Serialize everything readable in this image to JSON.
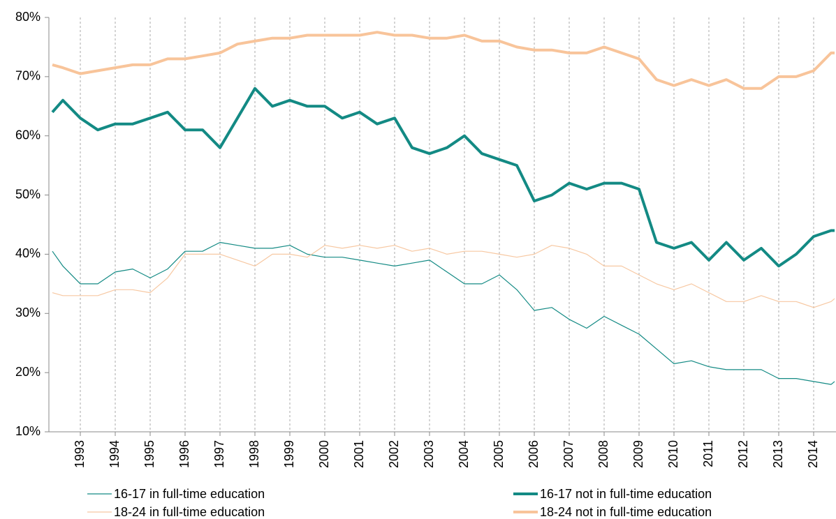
{
  "chart_data": {
    "type": "line",
    "x": [
      1992.2,
      1992.5,
      1993,
      1993.5,
      1994,
      1994.5,
      1995,
      1995.5,
      1996,
      1996.5,
      1997,
      1997.5,
      1998,
      1998.5,
      1999,
      1999.5,
      2000,
      2000.5,
      2001,
      2001.5,
      2002,
      2002.5,
      2003,
      2003.5,
      2004,
      2004.5,
      2005,
      2005.5,
      2006,
      2006.5,
      2007,
      2007.5,
      2008,
      2008.5,
      2009,
      2009.5,
      2010,
      2010.5,
      2011,
      2011.5,
      2012,
      2012.5,
      2013,
      2013.5,
      2014,
      2014.5,
      2014.6
    ],
    "series": [
      {
        "name": "16-17 in full-time education",
        "color": "#138a84",
        "width": 1.2,
        "values": [
          40.5,
          38,
          35,
          35,
          37,
          37.5,
          36,
          37.5,
          40.5,
          40.5,
          42,
          41.5,
          41,
          41,
          41.5,
          40,
          39.5,
          39.5,
          39,
          38.5,
          38,
          38.5,
          39,
          37,
          35,
          35,
          36.5,
          34,
          30.5,
          31,
          29,
          27.5,
          29.5,
          28,
          26.5,
          24,
          21.5,
          22,
          21,
          20.5,
          20.5,
          20.5,
          19,
          19,
          18.5,
          18,
          18.5
        ]
      },
      {
        "name": "16-17 not in full-time education",
        "color": "#138a84",
        "width": 4,
        "values": [
          64,
          66,
          63,
          61,
          62,
          62,
          63,
          64,
          61,
          61,
          58,
          63,
          68,
          65,
          66,
          65,
          65,
          63,
          64,
          62,
          63,
          58,
          57,
          58,
          60,
          57,
          56,
          55,
          49,
          50,
          52,
          51,
          52,
          52,
          51,
          42,
          41,
          42,
          39,
          42,
          39,
          41,
          38,
          40,
          43,
          44,
          44
        ]
      },
      {
        "name": "18-24 in full-time education",
        "color": "#f7c8a2",
        "width": 1.2,
        "values": [
          33.5,
          33,
          33,
          33,
          34,
          34,
          33.5,
          36,
          40,
          40,
          40,
          39,
          38,
          40,
          40,
          39.5,
          41.5,
          41,
          41.5,
          41,
          41.5,
          40.5,
          41,
          40,
          40.5,
          40.5,
          40,
          39.5,
          40,
          41.5,
          41,
          40,
          38,
          38,
          36.5,
          35,
          34,
          35,
          33.5,
          32,
          32,
          33,
          32,
          32,
          31,
          32,
          32.5
        ]
      },
      {
        "name": "18-24 not in full-time education",
        "color": "#f8c49a",
        "width": 4,
        "values": [
          72,
          71.5,
          70.5,
          71,
          71.5,
          72,
          72,
          73,
          73,
          73.5,
          74,
          75.5,
          76,
          76.5,
          76.5,
          77,
          77,
          77,
          77,
          77.5,
          77,
          77,
          76.5,
          76.5,
          77,
          76,
          76,
          75,
          74.5,
          74.5,
          74,
          74,
          75,
          74,
          73,
          69.5,
          68.5,
          69.5,
          68.5,
          69.5,
          68,
          68,
          70,
          70,
          71,
          74,
          74
        ]
      }
    ],
    "xlim": [
      1992.1,
      2014.64
    ],
    "xticks": [
      1993,
      1994,
      1995,
      1996,
      1997,
      1998,
      1999,
      2000,
      2001,
      2002,
      2003,
      2004,
      2005,
      2006,
      2007,
      2008,
      2009,
      2010,
      2011,
      2012,
      2013,
      2014
    ],
    "ylim": [
      10,
      80
    ],
    "yticks": [
      {
        "value": 10,
        "label": "10%"
      },
      {
        "value": 20,
        "label": "20%"
      },
      {
        "value": 30,
        "label": "30%"
      },
      {
        "value": 40,
        "label": "40%"
      },
      {
        "value": 50,
        "label": "50%"
      },
      {
        "value": 60,
        "label": "60%"
      },
      {
        "value": 70,
        "label": "70%"
      },
      {
        "value": 80,
        "label": "80%"
      }
    ],
    "grid": "x",
    "legend": "bottom"
  }
}
